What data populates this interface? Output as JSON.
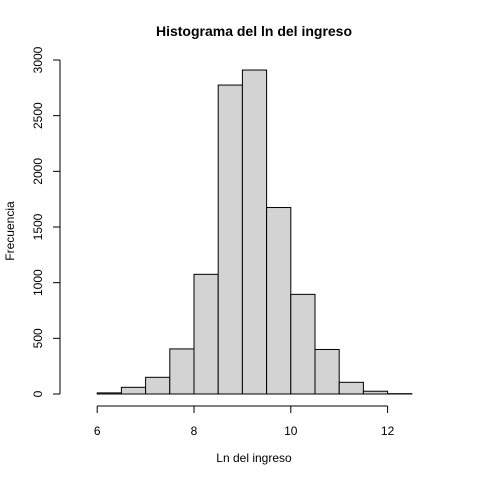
{
  "chart_data": {
    "type": "bar",
    "title": "Histograma del ln del ingreso",
    "xlabel": "Ln del ingreso",
    "ylabel": "Frecuencia",
    "bins": [
      {
        "x0": 6.0,
        "x1": 6.5,
        "count": 10
      },
      {
        "x0": 6.5,
        "x1": 7.0,
        "count": 60
      },
      {
        "x0": 7.0,
        "x1": 7.5,
        "count": 150
      },
      {
        "x0": 7.5,
        "x1": 8.0,
        "count": 405
      },
      {
        "x0": 8.0,
        "x1": 8.5,
        "count": 1075
      },
      {
        "x0": 8.5,
        "x1": 9.0,
        "count": 2775
      },
      {
        "x0": 9.0,
        "x1": 9.5,
        "count": 2910
      },
      {
        "x0": 9.5,
        "x1": 10.0,
        "count": 1675
      },
      {
        "x0": 10.0,
        "x1": 10.5,
        "count": 895
      },
      {
        "x0": 10.5,
        "x1": 11.0,
        "count": 400
      },
      {
        "x0": 11.0,
        "x1": 11.5,
        "count": 105
      },
      {
        "x0": 11.5,
        "x1": 12.0,
        "count": 25
      },
      {
        "x0": 12.0,
        "x1": 12.5,
        "count": 3
      }
    ],
    "xlim": [
      5.5,
      13.0
    ],
    "ylim": [
      0,
      3000
    ],
    "xticks": [
      6,
      8,
      10,
      12
    ],
    "yticks": [
      0,
      500,
      1000,
      1500,
      2000,
      2500,
      3000
    ],
    "bar_fill": "#d3d3d3",
    "bar_stroke": "#000000",
    "grid": false
  }
}
